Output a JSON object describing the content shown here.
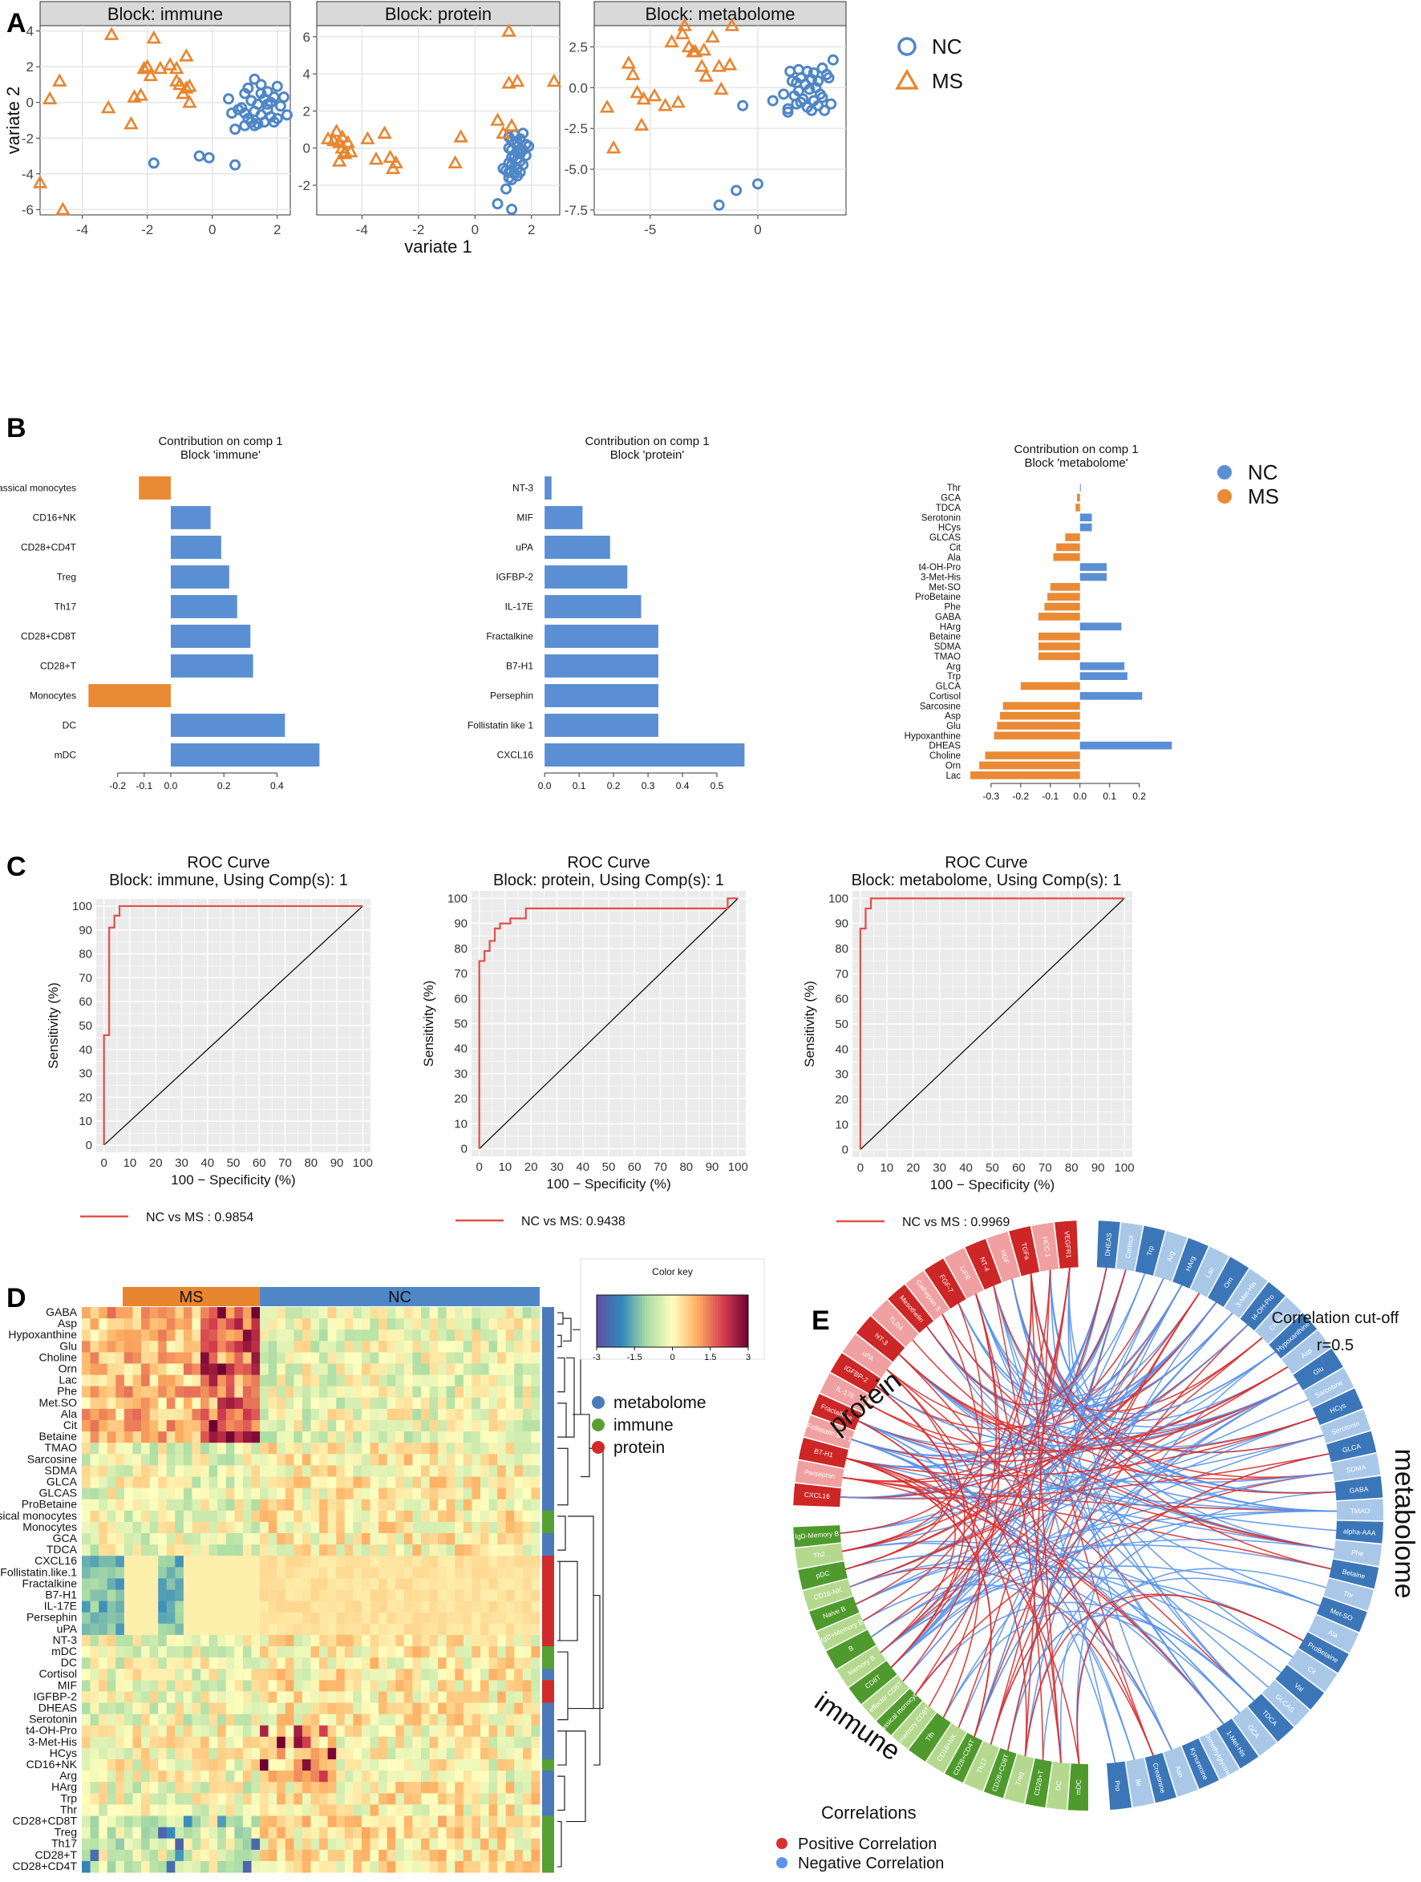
{
  "colors": {
    "nc": "#4f86c6",
    "ms": "#e8852f",
    "ms_bar": "#ea8a34",
    "nc_bar": "#5b8fd3",
    "roc": "#e0504b",
    "facet_bg": "#d9d9d9",
    "panel_bg": "#ebebeb",
    "grid": "#ffffff",
    "positive_corr": "#d93030",
    "negative_corr": "#5b95ea",
    "metabolome": "#4a7ab8",
    "immune": "#58a032",
    "protein": "#d02a2a"
  },
  "panel_letters": [
    "A",
    "B",
    "C",
    "D",
    "E"
  ],
  "panel_a": {
    "legend": [
      {
        "label": "NC",
        "marker": "circle"
      },
      {
        "label": "MS",
        "marker": "triangle"
      }
    ]
  },
  "panel_b": {
    "legend": [
      {
        "label": "NC"
      },
      {
        "label": "MS"
      }
    ]
  },
  "panel_d": {
    "color_key_title": "Color key",
    "color_key_ticks": [
      "-3",
      "-1.5",
      "0",
      "1.5",
      "3"
    ],
    "color_key_range": [
      -3,
      3
    ],
    "legend": [
      "metabolome",
      "immune",
      "protein"
    ],
    "annot_ms": "MS",
    "annot_nc": "NC",
    "row_labels": [
      "GABA",
      "Asp",
      "Hypoxanthine",
      "Glu",
      "Choline",
      "Orn",
      "Lac",
      "Phe",
      "Met.SO",
      "Ala",
      "Cit",
      "Betaine",
      "TMAO",
      "Sarcosine",
      "SDMA",
      "GLCA",
      "GLCAS",
      "ProBetaine",
      "classical monocytes",
      "Monocytes",
      "GCA",
      "TDCA",
      "CXCL16",
      "Follistatin.like.1",
      "Fractalkine",
      "B7-H1",
      "IL-17E",
      "Persephin",
      "uPA",
      "NT-3",
      "mDC",
      "DC",
      "Cortisol",
      "MIF",
      "IGFBP-2",
      "DHEAS",
      "Serotonin",
      "t4-OH-Pro",
      "3-Met-His",
      "HCys",
      "CD16+NK",
      "Arg",
      "HArg",
      "Trp",
      "Thr",
      "CD28+CD8T",
      "Treg",
      "Th17",
      "CD28+T",
      "CD28+CD4T"
    ],
    "row_blocks": [
      "metabolome",
      "metabolome",
      "metabolome",
      "metabolome",
      "metabolome",
      "metabolome",
      "metabolome",
      "metabolome",
      "metabolome",
      "metabolome",
      "metabolome",
      "metabolome",
      "metabolome",
      "metabolome",
      "metabolome",
      "metabolome",
      "metabolome",
      "metabolome",
      "immune",
      "immune",
      "metabolome",
      "metabolome",
      "protein",
      "protein",
      "protein",
      "protein",
      "protein",
      "protein",
      "protein",
      "protein",
      "immune",
      "immune",
      "metabolome",
      "protein",
      "protein",
      "metabolome",
      "metabolome",
      "metabolome",
      "metabolome",
      "metabolome",
      "immune",
      "metabolome",
      "metabolome",
      "metabolome",
      "metabolome",
      "immune",
      "immune",
      "immune",
      "immune",
      "immune"
    ],
    "n_ms_columns": 21,
    "n_nc_columns": 33
  },
  "panel_e": {
    "title_line1": "Correlation cut-off",
    "title_line2": "r=0.5",
    "group_labels": {
      "protein": "protein",
      "metabolome": "metabolome",
      "immune": "immune"
    },
    "legend_title": "Correlations",
    "legend_items": [
      "Positive Correlation",
      "Negative Correlation"
    ],
    "protein_nodes": [
      "CXCL16",
      "Persephin",
      "B7-H1",
      "Follistatin like 1",
      "Fractalkine",
      "IL-17E",
      "IGFBP-2",
      "uPA",
      "NT-3",
      "TLR4",
      "Mesothelin",
      "Cathepsin S",
      "FGF-7",
      "LIFR",
      "NT-4",
      "HGF",
      "TGFa",
      "HCC-1",
      "VEGFR1"
    ],
    "metabolome_nodes": [
      "DHEAS",
      "Cortisol",
      "Trp",
      "Arg",
      "HArg",
      "Lac",
      "Orn",
      "3-Met-His",
      "t4-OH-Pro",
      "Choline",
      "Hypoxanthine",
      "Asp",
      "Glu",
      "Sarcosine",
      "HCys",
      "Serotonin",
      "GLCA",
      "SDMA",
      "GABA",
      "TMAO",
      "alpha-AAA",
      "Phe",
      "Betaine",
      "Thr",
      "Met-SO",
      "Ala",
      "ProBetaine",
      "Cit",
      "Val",
      "GLCAS",
      "TDCA",
      "GCA",
      "1-Met-His",
      "Dimethylglycine",
      "Kynurenine",
      "Asn",
      "Creatinine",
      "Ile",
      "Pro"
    ],
    "immune_nodes": [
      "mDC",
      "DC",
      "CD28+T",
      "Treg",
      "CD28+CD8T",
      "Th17",
      "CD28+CD4T",
      "CD16+NK",
      "Tfh",
      "memory CD8T",
      "classical monocytes",
      "effector CD8T",
      "CD8T",
      "Memory B",
      "B",
      "IgD+Memory B",
      "Naive B",
      "CD16-NK",
      "pDC",
      "Th2",
      "IgD-Memory B"
    ]
  },
  "chart_data": [
    {
      "type": "scatter",
      "title": "Block: immune",
      "xlabel": "variate 1",
      "ylabel": "variate 2",
      "xlim": [
        -5.3,
        2.4
      ],
      "ylim": [
        -6.3,
        4.3
      ],
      "xticks": [
        -4,
        -2,
        0,
        2
      ],
      "yticks": [
        -6,
        -4,
        -2,
        0,
        2,
        4
      ],
      "grid": true,
      "legend_position": "right",
      "series": [
        {
          "name": "NC",
          "marker": "circle",
          "x": [
            1.3,
            1.5,
            1.1,
            1.7,
            2.0,
            1.9,
            1.0,
            1.2,
            1.4,
            1.6,
            1.8,
            2.1,
            2.2,
            0.9,
            1.0,
            1.3,
            1.5,
            1.7,
            2.0,
            1.1,
            1.4,
            1.8,
            1.6,
            2.3,
            0.6,
            0.8,
            1.2,
            1.9,
            1.3,
            1.0,
            1.5,
            0.7,
            1.7,
            -1.8,
            -0.4,
            -0.1,
            0.7,
            0.5
          ],
          "y": [
            1.3,
            1.0,
            0.8,
            0.6,
            0.9,
            0.3,
            0.5,
            0.1,
            -0.1,
            0.2,
            0.0,
            -0.2,
            0.3,
            -0.3,
            -0.6,
            -0.5,
            -0.7,
            -0.4,
            -0.9,
            -0.9,
            -1.2,
            -0.8,
            -1.1,
            -0.7,
            -0.6,
            -0.4,
            -1.1,
            -1.1,
            -1.3,
            -1.3,
            0.5,
            -1.5,
            -0.1,
            -3.4,
            -3.0,
            -3.1,
            -3.5,
            0.2
          ]
        },
        {
          "name": "MS",
          "marker": "triangle",
          "x": [
            -5.0,
            -4.7,
            -5.3,
            -4.6,
            -3.1,
            -3.2,
            -2.4,
            -2.2,
            -2.0,
            -2.1,
            -1.8,
            -1.9,
            -2.5,
            -1.3,
            -1.1,
            -0.8,
            -0.7,
            -1.0,
            -0.9,
            -0.7,
            -1.6,
            -1.1,
            -0.8
          ],
          "y": [
            0.2,
            1.2,
            -4.5,
            -6.0,
            3.8,
            -0.3,
            0.3,
            0.4,
            2.0,
            1.9,
            3.6,
            1.5,
            -1.2,
            2.1,
            1.9,
            2.6,
            0.9,
            1.0,
            0.5,
            0.0,
            1.9,
            1.2,
            0.8
          ]
        }
      ]
    },
    {
      "type": "scatter",
      "title": "Block: protein",
      "xlabel": "variate 1",
      "ylabel": "",
      "xlim": [
        -5.6,
        3.0
      ],
      "ylim": [
        -3.6,
        6.6
      ],
      "xticks": [
        -4,
        -2,
        0,
        2
      ],
      "yticks": [
        -2,
        0,
        2,
        4,
        6
      ],
      "grid": true,
      "series": [
        {
          "name": "NC",
          "marker": "circle",
          "x": [
            1.2,
            1.3,
            1.4,
            1.5,
            1.6,
            1.7,
            1.8,
            1.9,
            1.2,
            1.3,
            1.5,
            1.6,
            1.7,
            1.4,
            1.3,
            1.5,
            1.6,
            1.8,
            1.2,
            1.3,
            1.4,
            1.5,
            1.7,
            1.1,
            1.2,
            1.4,
            1.5,
            1.6,
            1.3,
            1.0,
            1.2,
            1.1,
            0.8,
            1.3,
            1.4
          ],
          "y": [
            0.6,
            0.4,
            0.7,
            0.3,
            0.5,
            0.8,
            0.2,
            0.1,
            0.0,
            -0.1,
            -0.2,
            -0.3,
            -0.1,
            -0.4,
            -0.5,
            -0.6,
            -0.7,
            -0.4,
            -0.8,
            -0.9,
            -1.0,
            -1.1,
            -0.9,
            -1.2,
            -1.3,
            -1.4,
            -1.5,
            -1.3,
            -1.7,
            -1.1,
            -1.6,
            -2.2,
            -3.0,
            -3.3,
            0.3
          ]
        },
        {
          "name": "MS",
          "marker": "triangle",
          "x": [
            -5.2,
            -5.0,
            -4.9,
            -4.8,
            -4.7,
            -4.6,
            -4.8,
            -4.5,
            -4.6,
            -4.7,
            -4.4,
            -3.8,
            -3.5,
            -3.0,
            -2.9,
            -3.2,
            -2.8,
            -0.7,
            -0.5,
            1.2,
            1.2,
            1.5,
            2.8,
            0.8,
            1.0,
            1.3
          ],
          "y": [
            0.5,
            0.4,
            0.9,
            0.3,
            0.0,
            -0.2,
            -0.7,
            0.3,
            -0.3,
            0.6,
            -0.2,
            0.5,
            -0.6,
            -0.5,
            -1.1,
            0.8,
            -0.8,
            -0.8,
            0.6,
            6.3,
            3.5,
            3.6,
            3.6,
            1.5,
            0.8,
            1.2
          ]
        }
      ]
    },
    {
      "type": "scatter",
      "title": "Block: metabolome",
      "xlabel": "variate 1",
      "ylabel": "",
      "xlim": [
        -7.6,
        4.1
      ],
      "ylim": [
        -7.8,
        3.8
      ],
      "xticks": [
        -5,
        0
      ],
      "yticks": [
        -7.5,
        -5.0,
        -2.5,
        0.0,
        2.5
      ],
      "grid": true,
      "series": [
        {
          "name": "NC",
          "marker": "circle",
          "x": [
            1.5,
            1.9,
            2.3,
            2.6,
            3.0,
            3.5,
            2.0,
            2.5,
            2.8,
            3.2,
            1.6,
            1.8,
            2.2,
            2.7,
            3.3,
            1.9,
            2.4,
            2.9,
            1.7,
            2.1,
            2.6,
            3.0,
            1.8,
            2.3,
            2.8,
            3.4,
            2.5,
            1.2,
            1.4,
            3.1,
            0.7,
            1.4,
            2.0,
            -0.7,
            0.0,
            -1.8,
            -1.0
          ],
          "y": [
            1.0,
            1.1,
            1.0,
            0.9,
            1.2,
            1.7,
            0.6,
            0.5,
            0.4,
            0.8,
            0.4,
            0.3,
            0.2,
            0.0,
            0.6,
            -0.2,
            -0.1,
            -0.4,
            -0.5,
            -0.7,
            -0.8,
            -0.6,
            -1.0,
            -1.2,
            -1.1,
            -1.0,
            -1.4,
            -0.4,
            -1.3,
            -1.4,
            -0.8,
            -1.5,
            -0.9,
            -1.1,
            -5.9,
            -7.2,
            -6.3
          ]
        },
        {
          "name": "MS",
          "marker": "triangle",
          "x": [
            -7.0,
            -6.7,
            -6.0,
            -5.8,
            -5.6,
            -5.4,
            -5.3,
            -4.8,
            -4.3,
            -4.0,
            -3.7,
            -3.5,
            -3.4,
            -3.2,
            -2.9,
            -2.6,
            -2.4,
            -2.5,
            -3.0,
            -2.1,
            -1.8,
            -1.7,
            -1.3,
            -1.2
          ],
          "y": [
            -1.2,
            -3.7,
            1.5,
            0.8,
            -0.3,
            -2.3,
            -0.7,
            -0.5,
            -1.1,
            2.8,
            -0.9,
            3.3,
            3.8,
            2.5,
            2.2,
            1.3,
            0.7,
            2.3,
            2.2,
            3.1,
            1.3,
            -0.1,
            1.4,
            3.8
          ]
        }
      ]
    },
    {
      "type": "bar",
      "orientation": "horizontal",
      "title": "Contribution on comp 1\nBlock 'immune'",
      "categories": [
        "classical monocytes",
        "CD16+NK",
        "CD28+CD4T",
        "Treg",
        "Th17",
        "CD28+CD8T",
        "CD28+T",
        "Monocytes",
        "DC",
        "mDC"
      ],
      "values": [
        -0.12,
        0.15,
        0.19,
        0.22,
        0.25,
        0.3,
        0.31,
        -0.31,
        0.43,
        0.56
      ],
      "groups": [
        "MS",
        "NC",
        "NC",
        "NC",
        "NC",
        "NC",
        "NC",
        "MS",
        "NC",
        "NC"
      ],
      "xlim": [
        -0.32,
        0.58
      ],
      "xticks": [
        -0.2,
        -0.1,
        0.0,
        0.2,
        0.4
      ]
    },
    {
      "type": "bar",
      "orientation": "horizontal",
      "title": "Contribution on comp 1\nBlock 'protein'",
      "categories": [
        "NT-3",
        "MIF",
        "uPA",
        "IGFBP-2",
        "IL-17E",
        "Fractalkine",
        "B7-H1",
        "Persephin",
        "Follistatin like 1",
        "CXCL16"
      ],
      "values": [
        0.02,
        0.11,
        0.19,
        0.24,
        0.28,
        0.33,
        0.33,
        0.33,
        0.33,
        0.58
      ],
      "groups": [
        "NC",
        "NC",
        "NC",
        "NC",
        "NC",
        "NC",
        "NC",
        "NC",
        "NC",
        "NC"
      ],
      "xlim": [
        -0.005,
        0.6
      ],
      "xticks": [
        0.0,
        0.1,
        0.2,
        0.3,
        0.4,
        0.5
      ]
    },
    {
      "type": "bar",
      "orientation": "horizontal",
      "title": "Contribution on comp 1\nBlock 'metabolome'",
      "categories": [
        "Thr",
        "GCA",
        "TDCA",
        "Serotonin",
        "HCys",
        "GLCAS",
        "Cit",
        "Ala",
        "t4-OH-Pro",
        "3-Met-His",
        "Met-SO",
        "ProBetaine",
        "Phe",
        "GABA",
        "HArg",
        "Betaine",
        "SDMA",
        "TMAO",
        "Arg",
        "Trp",
        "GLCA",
        "Cortisol",
        "Sarcosine",
        "Asp",
        "Glu",
        "Hypoxanthine",
        "DHEAS",
        "Choline",
        "Orn",
        "Lac"
      ],
      "values": [
        0.002,
        -0.01,
        -0.015,
        0.04,
        0.04,
        -0.05,
        -0.08,
        -0.09,
        0.09,
        0.09,
        -0.1,
        -0.11,
        -0.12,
        -0.14,
        0.14,
        -0.14,
        -0.14,
        -0.14,
        0.15,
        0.16,
        -0.2,
        0.21,
        -0.26,
        -0.27,
        -0.28,
        -0.29,
        0.31,
        -0.32,
        -0.34,
        -0.37
      ],
      "groups": [
        "NC",
        "MS",
        "MS",
        "NC",
        "NC",
        "MS",
        "MS",
        "MS",
        "NC",
        "NC",
        "MS",
        "MS",
        "MS",
        "MS",
        "NC",
        "MS",
        "MS",
        "MS",
        "NC",
        "NC",
        "MS",
        "NC",
        "MS",
        "MS",
        "MS",
        "MS",
        "NC",
        "MS",
        "MS",
        "MS"
      ],
      "xlim": [
        -0.37,
        0.32
      ],
      "xticks": [
        -0.3,
        -0.2,
        -0.1,
        0.0,
        0.1,
        0.2
      ]
    },
    {
      "type": "line",
      "title": "ROC Curve\nBlock: immune, Using Comp(s): 1",
      "xlabel": "100 − Specificity (%)",
      "ylabel": "Sensitivity (%)",
      "xlim": [
        0,
        100
      ],
      "ylim": [
        0,
        100
      ],
      "ticks": [
        0,
        10,
        20,
        30,
        40,
        50,
        60,
        70,
        80,
        90,
        100
      ],
      "series": [
        {
          "name": "NC vs MS : 0.9854",
          "x": [
            0,
            0,
            2,
            2,
            4,
            4,
            6,
            6,
            100
          ],
          "y": [
            0,
            46,
            46,
            91,
            91,
            96,
            96,
            100,
            100
          ]
        }
      ]
    },
    {
      "type": "line",
      "title": "ROC Curve\nBlock: protein, Using Comp(s): 1",
      "xlabel": "100 − Specificity (%)",
      "ylabel": "Sensitivity (%)",
      "xlim": [
        0,
        100
      ],
      "ylim": [
        0,
        100
      ],
      "ticks": [
        0,
        10,
        20,
        30,
        40,
        50,
        60,
        70,
        80,
        90,
        100
      ],
      "series": [
        {
          "name": "NC vs MS: 0.9438",
          "x": [
            0,
            0,
            2,
            2,
            4,
            4,
            6,
            6,
            8,
            8,
            12,
            12,
            18,
            18,
            96,
            96,
            100
          ],
          "y": [
            0,
            75,
            75,
            79,
            79,
            83,
            83,
            88,
            88,
            90,
            90,
            92,
            92,
            96,
            96,
            100,
            100
          ]
        }
      ]
    },
    {
      "type": "line",
      "title": "ROC Curve\nBlock: metabolome, Using Comp(s): 1",
      "xlabel": "100 − Specificity (%)",
      "ylabel": "Sensitivity (%)",
      "xlim": [
        0,
        100
      ],
      "ylim": [
        0,
        100
      ],
      "ticks": [
        0,
        10,
        20,
        30,
        40,
        50,
        60,
        70,
        80,
        90,
        100
      ],
      "series": [
        {
          "name": "NC vs MS : 0.9969",
          "x": [
            0,
            0,
            2,
            2,
            4,
            4,
            100
          ],
          "y": [
            0,
            88,
            88,
            96,
            96,
            100,
            100
          ]
        }
      ]
    }
  ]
}
